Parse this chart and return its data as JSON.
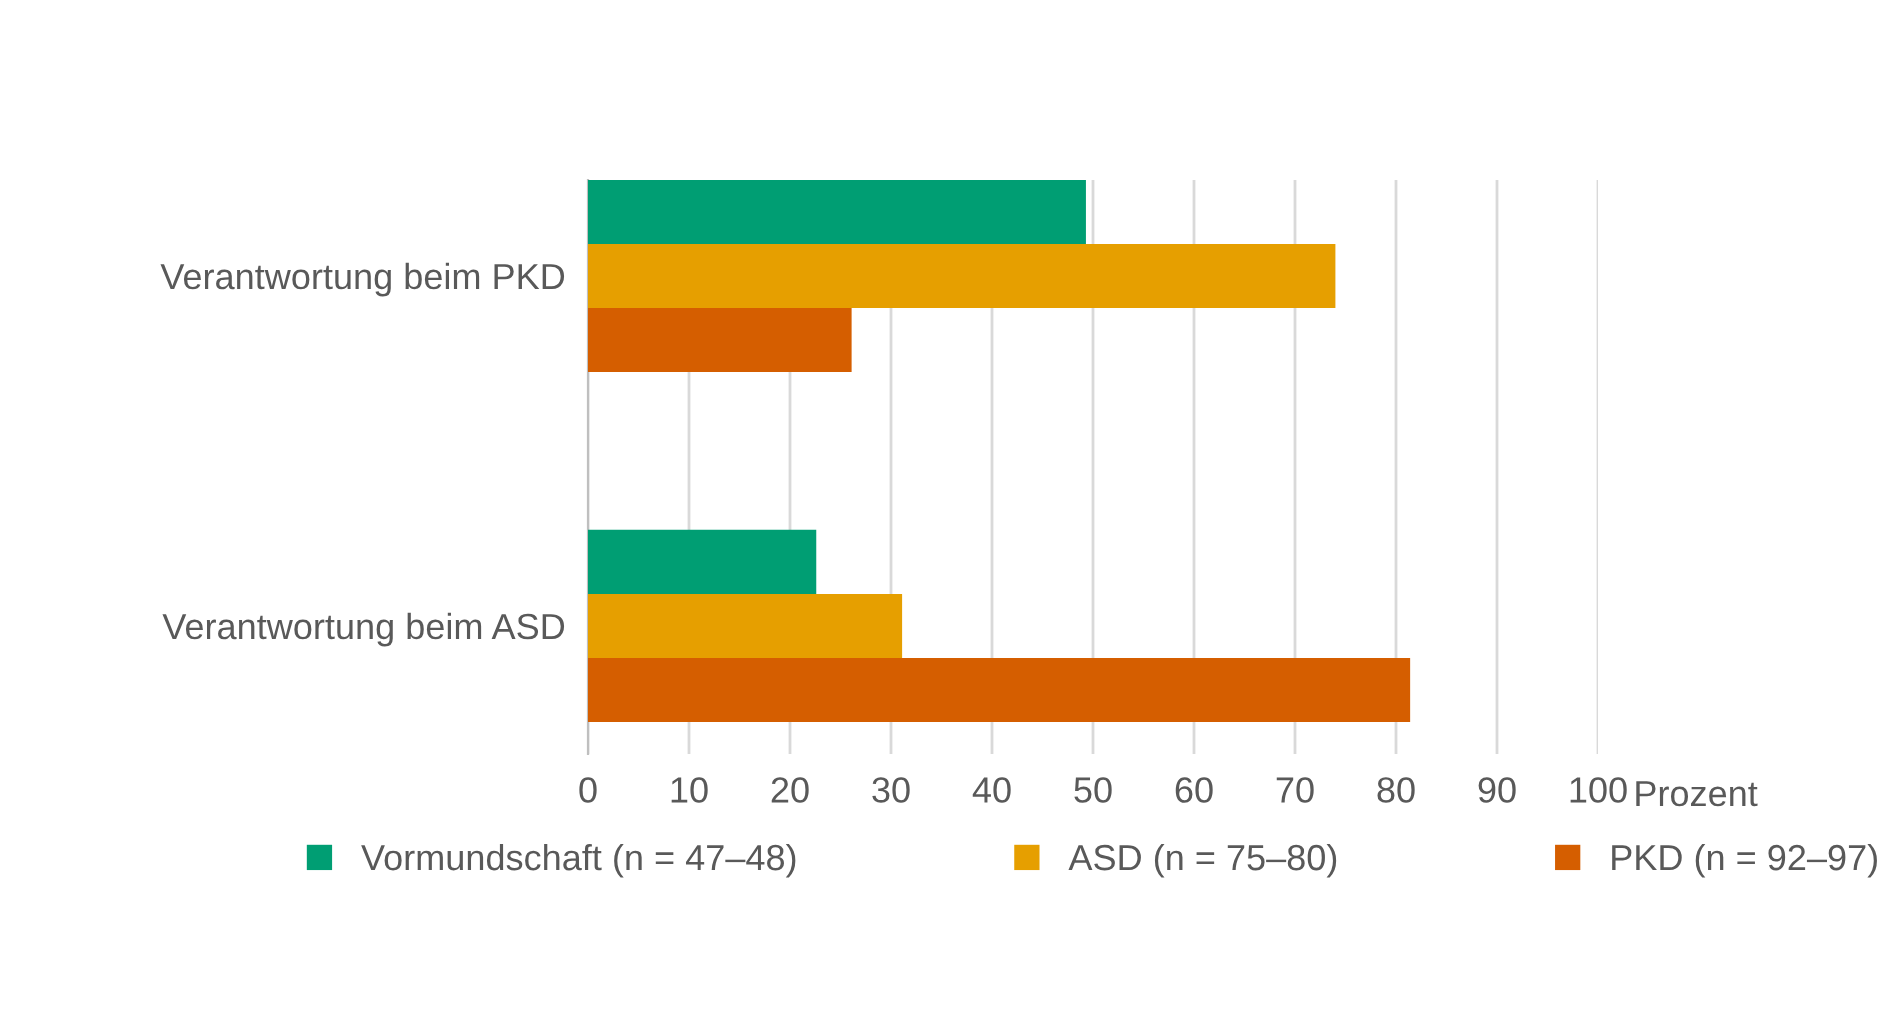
{
  "chart_data": {
    "type": "bar",
    "orientation": "horizontal",
    "xlabel": "Prozent",
    "categories": [
      "Verantwortung beim PKD",
      "Verantwortung beim ASD"
    ],
    "series": [
      {
        "name": "Vormundschaft (n = 47–48)",
        "color": "#009e73",
        "values": [
          49.3,
          22.6
        ]
      },
      {
        "name": "ASD (n = 75–80)",
        "color": "#e69f00",
        "values": [
          74.0,
          31.1
        ]
      },
      {
        "name": "PKD (n = 92–97)",
        "color": "#d55e00",
        "values": [
          26.1,
          81.4
        ]
      }
    ],
    "xlim": [
      0,
      100
    ],
    "xticks": [
      0,
      10,
      20,
      30,
      40,
      50,
      60,
      70,
      80,
      90,
      100
    ],
    "grid": "x",
    "legend": "bottom"
  }
}
